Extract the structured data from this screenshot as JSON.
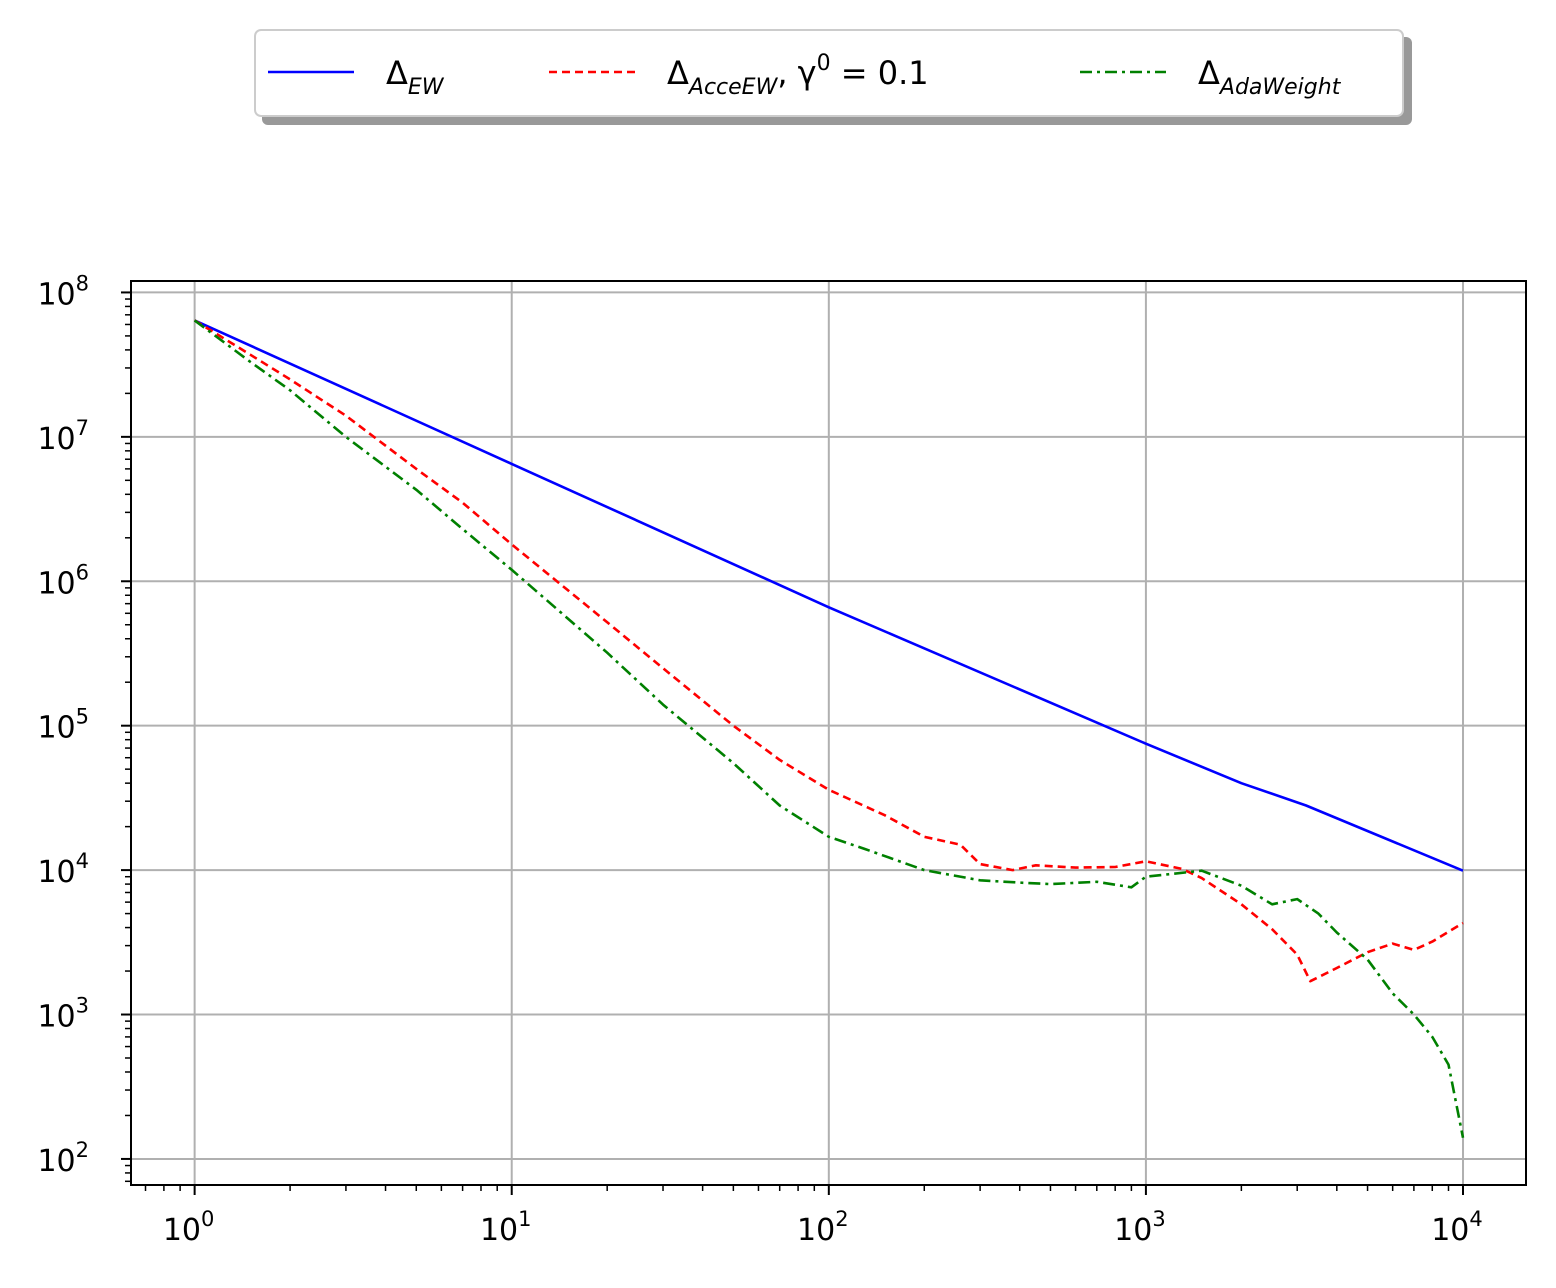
{
  "chart_data": {
    "type": "line",
    "xscale": "log",
    "yscale": "log",
    "xlim": [
      0.63,
      15800
    ],
    "ylim": [
      66,
      120000000
    ],
    "grid": true,
    "legend_position": "top-center",
    "x_ticks": [
      {
        "base": "10",
        "exp": "0",
        "value": 1
      },
      {
        "base": "10",
        "exp": "1",
        "value": 10
      },
      {
        "base": "10",
        "exp": "2",
        "value": 100
      },
      {
        "base": "10",
        "exp": "3",
        "value": 1000
      },
      {
        "base": "10",
        "exp": "4",
        "value": 10000
      }
    ],
    "y_ticks": [
      {
        "base": "10",
        "exp": "2",
        "value": 100
      },
      {
        "base": "10",
        "exp": "3",
        "value": 1000
      },
      {
        "base": "10",
        "exp": "4",
        "value": 10000
      },
      {
        "base": "10",
        "exp": "5",
        "value": 100000
      },
      {
        "base": "10",
        "exp": "6",
        "value": 1000000
      },
      {
        "base": "10",
        "exp": "7",
        "value": 10000000
      },
      {
        "base": "10",
        "exp": "8",
        "value": 100000000
      }
    ],
    "series": [
      {
        "name": "Δ",
        "sub": "EW",
        "sup": "",
        "suffix": "",
        "color": "#0000ff",
        "dash": "",
        "points": [
          [
            1,
            64000000
          ],
          [
            10,
            6500000
          ],
          [
            100,
            660000
          ],
          [
            1000,
            75000
          ],
          [
            2000,
            40000
          ],
          [
            3200,
            28000
          ],
          [
            10000,
            9900
          ]
        ]
      },
      {
        "name": "Δ",
        "sub": "AcceEW",
        "sup": "0",
        "suffix": ", γ = 0.1",
        "color": "#ff0000",
        "dash": "8,5",
        "points": [
          [
            1,
            64000000
          ],
          [
            1.5,
            37000000
          ],
          [
            2,
            25000000
          ],
          [
            3,
            14000000
          ],
          [
            5,
            6000000
          ],
          [
            7,
            3500000
          ],
          [
            10,
            1800000
          ],
          [
            20,
            520000
          ],
          [
            30,
            250000
          ],
          [
            50,
            100000
          ],
          [
            70,
            58000
          ],
          [
            100,
            36000
          ],
          [
            150,
            24000
          ],
          [
            200,
            17000
          ],
          [
            260,
            15000
          ],
          [
            300,
            11000
          ],
          [
            380,
            10000
          ],
          [
            450,
            10800
          ],
          [
            600,
            10400
          ],
          [
            800,
            10500
          ],
          [
            1000,
            11500
          ],
          [
            1300,
            10200
          ],
          [
            1500,
            8800
          ],
          [
            2000,
            5800
          ],
          [
            2500,
            3900
          ],
          [
            3000,
            2600
          ],
          [
            3300,
            1700
          ],
          [
            4000,
            2100
          ],
          [
            5000,
            2700
          ],
          [
            6000,
            3100
          ],
          [
            7000,
            2800
          ],
          [
            8000,
            3200
          ],
          [
            10000,
            4300
          ]
        ]
      },
      {
        "name": "Δ",
        "sub": "AdaWeight",
        "sup": "",
        "suffix": "",
        "color": "#008000",
        "dash": "12,5,3,5",
        "points": [
          [
            1,
            64000000
          ],
          [
            1.5,
            33000000
          ],
          [
            2,
            21000000
          ],
          [
            3,
            10000000
          ],
          [
            5,
            4300000
          ],
          [
            7,
            2300000
          ],
          [
            10,
            1200000
          ],
          [
            20,
            320000
          ],
          [
            30,
            140000
          ],
          [
            50,
            55000
          ],
          [
            70,
            28000
          ],
          [
            100,
            17000
          ],
          [
            130,
            14000
          ],
          [
            200,
            10000
          ],
          [
            300,
            8500
          ],
          [
            400,
            8200
          ],
          [
            500,
            8000
          ],
          [
            700,
            8300
          ],
          [
            900,
            7600
          ],
          [
            1000,
            9000
          ],
          [
            1500,
            9900
          ],
          [
            2000,
            7800
          ],
          [
            2500,
            5800
          ],
          [
            3000,
            6300
          ],
          [
            3500,
            5000
          ],
          [
            4000,
            3700
          ],
          [
            5000,
            2400
          ],
          [
            6000,
            1400
          ],
          [
            7000,
            1000
          ],
          [
            8000,
            700
          ],
          [
            9000,
            450
          ],
          [
            10000,
            140
          ]
        ]
      }
    ]
  }
}
